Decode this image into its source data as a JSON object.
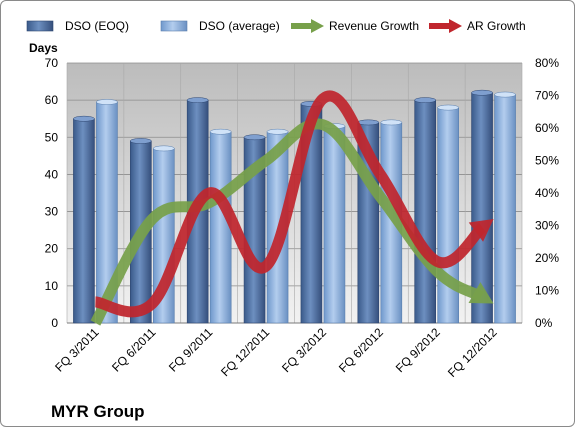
{
  "chart_data": {
    "type": "bar",
    "title": "",
    "caption": "MYR Group",
    "categories": [
      "FQ 3/2011",
      "FQ 6/2011",
      "FQ 9/2011",
      "FQ 12/2011",
      "FQ 3/2012",
      "FQ 6/2012",
      "FQ 9/2012",
      "FQ 12/2012"
    ],
    "series": [
      {
        "name": "DSO (EOQ)",
        "kind": "bar",
        "axis": "left",
        "color": "#4a6fa5",
        "values": [
          55,
          49,
          60,
          50,
          59,
          54,
          60,
          62
        ]
      },
      {
        "name": "DSO (average)",
        "kind": "bar",
        "axis": "left",
        "color": "#8fb4e3",
        "values": [
          59.5,
          47,
          51.5,
          51.5,
          53,
          54,
          58,
          61.5
        ]
      },
      {
        "name": "Revenue Growth",
        "kind": "arrow-line",
        "axis": "right",
        "color": "#77a04a",
        "values": [
          0,
          0.32,
          0.37,
          0.5,
          0.61,
          0.39,
          0.16,
          0.06
        ]
      },
      {
        "name": "AR Growth",
        "kind": "arrow-line",
        "axis": "right",
        "color": "#c0262d",
        "values": [
          0.065,
          0.06,
          0.4,
          0.175,
          0.69,
          0.46,
          0.19,
          0.32
        ]
      }
    ],
    "y_left": {
      "label": "Days",
      "min": 0,
      "max": 70,
      "ticks": [
        "0",
        "10",
        "20",
        "30",
        "40",
        "50",
        "60",
        "70"
      ]
    },
    "y_right": {
      "label": "",
      "min": 0,
      "max": 0.8,
      "ticks": [
        "0%",
        "10%",
        "20%",
        "30%",
        "40%",
        "50%",
        "60%",
        "70%",
        "80%"
      ]
    },
    "grid": true,
    "legend_position": "top"
  }
}
